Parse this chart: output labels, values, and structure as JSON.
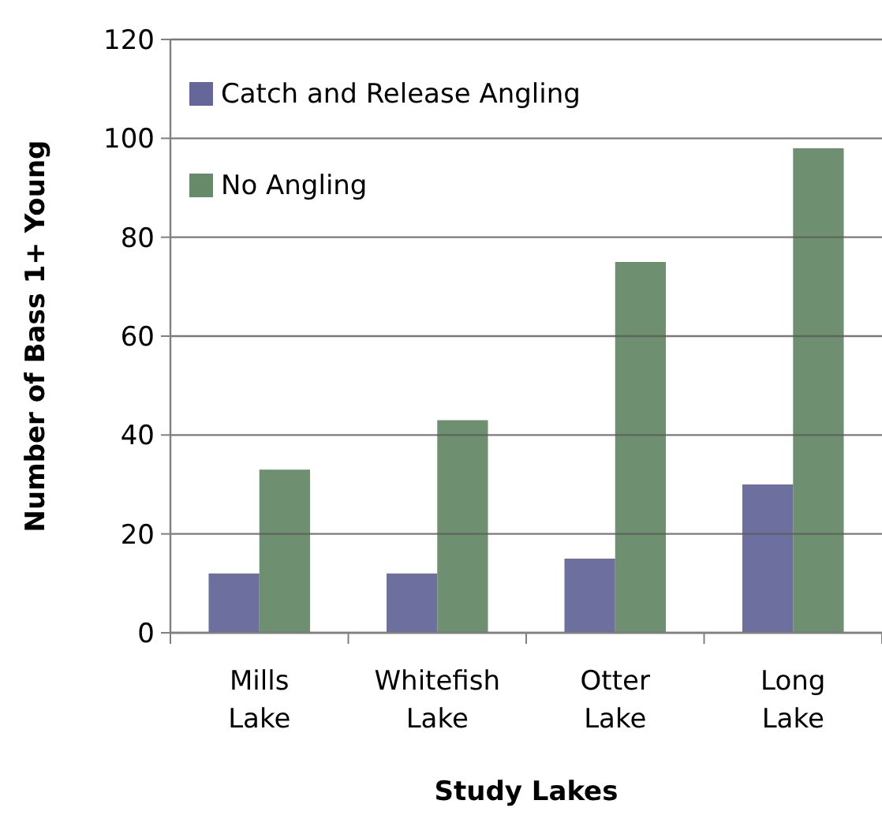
{
  "chart_data": {
    "type": "bar",
    "xlabel": "Study Lakes",
    "ylabel": "Number of Bass 1+ Young",
    "categories": [
      "Mills Lake",
      "Whitefish Lake",
      "Otter Lake",
      "Long Lake"
    ],
    "series": [
      {
        "name": "Catch and Release Angling",
        "color": "#65679a",
        "values": [
          12,
          12,
          15,
          30
        ]
      },
      {
        "name": "No Angling",
        "color": "#678a68",
        "values": [
          33,
          43,
          75,
          98
        ]
      }
    ],
    "ylim": [
      0,
      120
    ],
    "yticks": [
      0,
      20,
      40,
      60,
      80,
      100,
      120
    ],
    "grid": "y",
    "legend": "top left"
  }
}
